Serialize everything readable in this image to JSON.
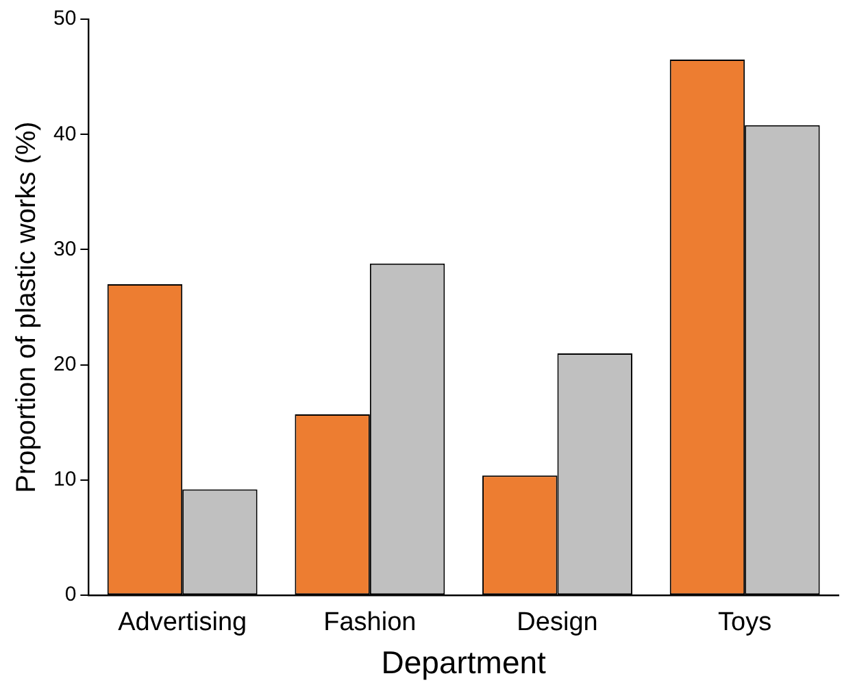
{
  "chart_data": {
    "type": "bar",
    "xlabel": "Department",
    "ylabel": "Proportion of plastic works (%)",
    "categories": [
      "Advertising",
      "Fashion",
      "Design",
      "Toys"
    ],
    "series": [
      {
        "color": "#ed7d31",
        "values": [
          27.0,
          15.7,
          10.4,
          46.5
        ]
      },
      {
        "color": "#c0c0c0",
        "values": [
          9.2,
          28.8,
          21.0,
          40.8
        ]
      }
    ],
    "ylim": [
      0,
      50
    ],
    "yticks": [
      0,
      10,
      20,
      30,
      40,
      50
    ],
    "grid": false,
    "legend": false
  }
}
